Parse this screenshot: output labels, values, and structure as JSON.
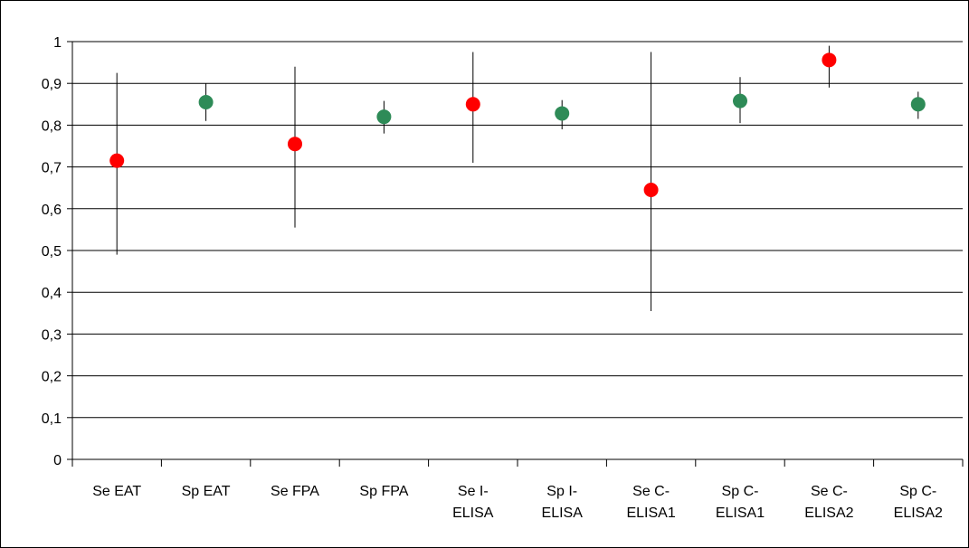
{
  "chart_data": {
    "type": "scatter",
    "title": "",
    "xlabel": "",
    "ylabel": "",
    "ylim": [
      0,
      1
    ],
    "yticks": [
      "0",
      "0,1",
      "0,2",
      "0,3",
      "0,4",
      "0,5",
      "0,6",
      "0,7",
      "0,8",
      "0,9",
      "1"
    ],
    "grid": true,
    "legend": "none",
    "categories": [
      [
        "Se EAT"
      ],
      [
        "Sp EAT"
      ],
      [
        "Se FPA"
      ],
      [
        "Sp FPA"
      ],
      [
        "Se I-",
        "ELISA"
      ],
      [
        "Sp I-",
        "ELISA"
      ],
      [
        "Se C-",
        "ELISA1"
      ],
      [
        "Sp C-",
        "ELISA1"
      ],
      [
        "Se C-",
        "ELISA2"
      ],
      [
        "Sp C-",
        "ELISA2"
      ]
    ],
    "values": [
      0.715,
      0.855,
      0.755,
      0.82,
      0.85,
      0.828,
      0.645,
      0.858,
      0.956,
      0.85
    ],
    "lower": [
      0.49,
      0.81,
      0.555,
      0.78,
      0.71,
      0.79,
      0.355,
      0.805,
      0.89,
      0.815
    ],
    "upper": [
      0.925,
      0.9,
      0.94,
      0.858,
      0.975,
      0.86,
      0.975,
      0.915,
      0.99,
      0.88
    ],
    "colors": [
      "#ff0000",
      "#2e8b57",
      "#ff0000",
      "#2e8b57",
      "#ff0000",
      "#2e8b57",
      "#ff0000",
      "#2e8b57",
      "#ff0000",
      "#2e8b57"
    ]
  }
}
